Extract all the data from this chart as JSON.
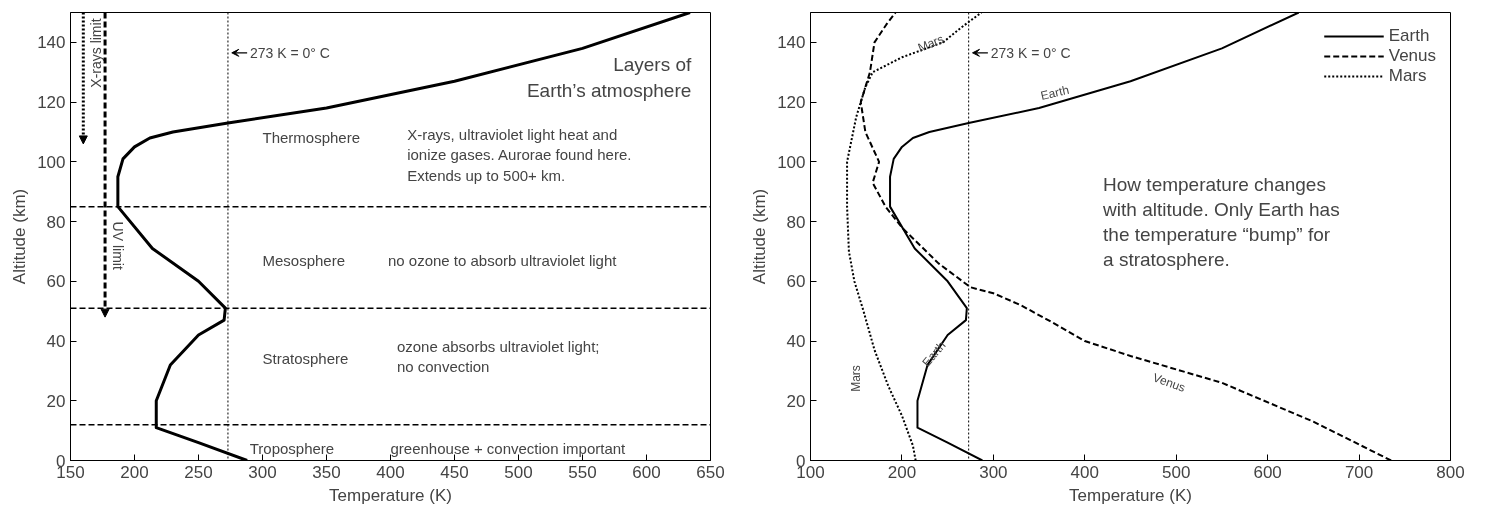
{
  "chart_data": [
    {
      "type": "line",
      "xlabel": "Temperature (K)",
      "ylabel": "Altitude (km)",
      "xlim": [
        150,
        650
      ],
      "ylim": [
        0,
        150
      ],
      "xticks": [
        150,
        200,
        250,
        300,
        350,
        400,
        450,
        500,
        550,
        600,
        650
      ],
      "yticks": [
        0,
        20,
        40,
        60,
        80,
        100,
        120,
        140
      ],
      "grid": false,
      "legend": false,
      "series": [
        {
          "color": "#000000",
          "line_style": "solid",
          "x": [
            288,
            250,
            217,
            217,
            228,
            250,
            270,
            271,
            250,
            214,
            187,
            187,
            191,
            200,
            212,
            230,
            273,
            350,
            450,
            550,
            634
          ],
          "values": [
            0,
            6,
            11,
            20,
            32,
            42,
            47,
            51,
            60,
            71,
            85,
            95,
            101,
            105,
            108,
            110,
            113,
            118,
            127,
            138,
            150
          ]
        }
      ],
      "ref_lines": [
        {
          "axis": "y",
          "value": 85,
          "line_style": "dashed",
          "color": "#000000"
        },
        {
          "axis": "y",
          "value": 51,
          "line_style": "dashed",
          "color": "#000000"
        },
        {
          "axis": "y",
          "value": 12,
          "line_style": "dashed",
          "color": "#000000"
        },
        {
          "axis": "x",
          "value": 273,
          "label": "273 K = 0° C",
          "line_style": "dotted",
          "color": "#000000"
        }
      ],
      "annotations": [
        "X-rays limit",
        "UV limit",
        "Layers of\nEarth’s atmosphere",
        "Thermosphere",
        "X-rays, ultraviolet light heat and\nionize gases. Aurorae found here.\nExtends up to 500+ km.",
        "Mesosphere",
        "no ozone to absorb ultraviolet light",
        "Stratosphere",
        "ozone absorbs ultraviolet light;\nno convection",
        "Troposphere",
        "greenhouse + convection important"
      ]
    },
    {
      "type": "line",
      "xlabel": "Temperature (K)",
      "ylabel": "Altitude (km)",
      "xlim": [
        100,
        800
      ],
      "ylim": [
        0,
        150
      ],
      "xticks": [
        100,
        200,
        300,
        400,
        500,
        600,
        700,
        800
      ],
      "yticks": [
        0,
        20,
        40,
        60,
        80,
        100,
        120,
        140
      ],
      "grid": false,
      "legend": "top right",
      "series": [
        {
          "name": "Earth",
          "color": "#000000",
          "line_style": "solid",
          "x": [
            288,
            250,
            217,
            217,
            228,
            250,
            270,
            271,
            250,
            214,
            187,
            187,
            191,
            200,
            212,
            230,
            273,
            350,
            450,
            550,
            634
          ],
          "values": [
            0,
            6,
            11,
            20,
            32,
            42,
            47,
            51,
            60,
            71,
            85,
            95,
            101,
            105,
            108,
            110,
            113,
            118,
            127,
            138,
            150
          ]
        },
        {
          "name": "Venus",
          "color": "#000000",
          "line_style": "dashed",
          "x": [
            735,
            650,
            550,
            450,
            400,
            360,
            330,
            300,
            275,
            240,
            200,
            182,
            168,
            175,
            160,
            155,
            165,
            170,
            183,
            193
          ],
          "values": [
            0,
            13,
            26,
            35,
            40,
            47,
            52,
            56,
            58,
            66,
            78,
            85,
            93,
            100,
            110,
            120,
            130,
            140,
            146,
            150
          ]
        },
        {
          "name": "Mars",
          "color": "#000000",
          "line_style": "dotted",
          "x": [
            215,
            212,
            200,
            185,
            170,
            158,
            148,
            142,
            140,
            140,
            150,
            160,
            168,
            200,
            245,
            265,
            287
          ],
          "values": [
            0,
            5,
            15,
            25,
            37,
            50,
            60,
            70,
            85,
            100,
            115,
            125,
            130,
            135,
            140,
            145,
            150
          ]
        }
      ],
      "ref_lines": [
        {
          "axis": "x",
          "value": 273,
          "label": "273 K = 0° C",
          "line_style": "dotted",
          "color": "#000000"
        }
      ],
      "annotations": [
        "Mars",
        "Earth",
        "Earth",
        "Mars",
        "Venus",
        "How temperature changes\nwith altitude. Only Earth has\nthe temperature “bump” for\na stratosphere."
      ]
    }
  ]
}
